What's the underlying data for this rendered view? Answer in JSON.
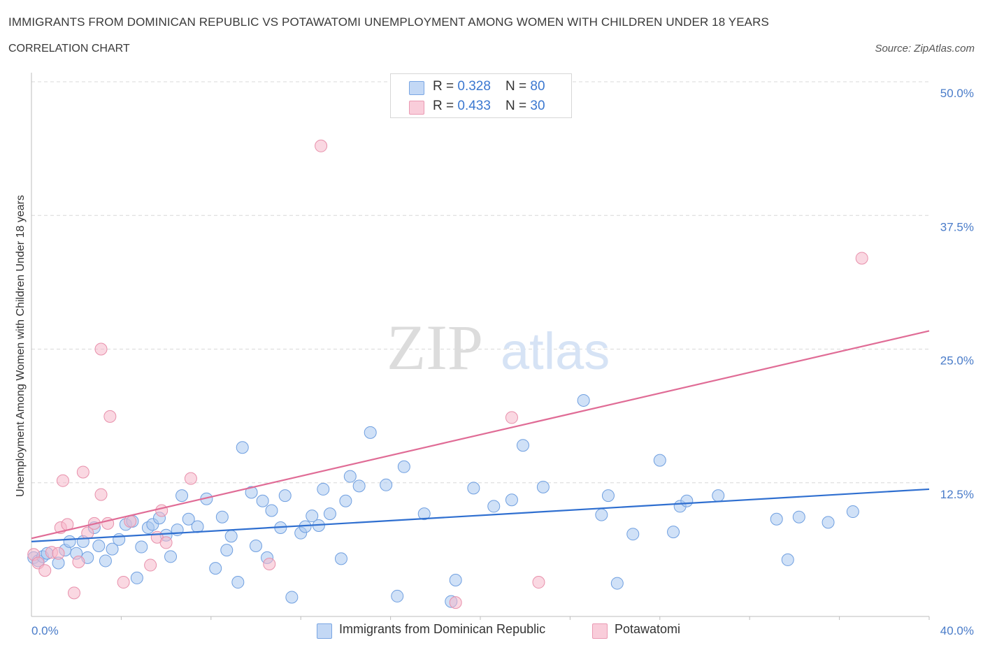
{
  "header": {
    "title": "IMMIGRANTS FROM DOMINICAN REPUBLIC VS POTAWATOMI UNEMPLOYMENT AMONG WOMEN WITH CHILDREN UNDER 18 YEARS",
    "subtitle": "CORRELATION CHART",
    "source": "Source: ZipAtlas.com"
  },
  "watermark": {
    "zip": "ZIP",
    "atlas": "atlas"
  },
  "legend": {
    "rows": [
      {
        "r_label": "R = ",
        "r_value": "0.328",
        "n_label": "N = ",
        "n_value": "80",
        "color": "#a9c8f0"
      },
      {
        "r_label": "R = ",
        "r_value": "0.433",
        "n_label": "N = ",
        "n_value": "30",
        "color": "#f5b8cb"
      }
    ]
  },
  "colors": {
    "blue_fill": "#a9c8f0",
    "blue_stroke": "#6f9fe0",
    "blue_line": "#2f6fd0",
    "pink_fill": "#f5b8cb",
    "pink_stroke": "#e890ab",
    "pink_line": "#e06c96",
    "grid": "#d8d8d8",
    "tick_text": "#4a7cc9"
  },
  "chart_data": {
    "type": "scatter",
    "title": "IMMIGRANTS FROM DOMINICAN REPUBLIC VS POTAWATOMI UNEMPLOYMENT AMONG WOMEN WITH CHILDREN UNDER 18 YEARS",
    "xlabel": "",
    "ylabel": "Unemployment Among Women with Children Under 18 years",
    "xlim": [
      0,
      40
    ],
    "ylim": [
      0,
      50
    ],
    "x_tick_labels": [
      "0.0%",
      "40.0%"
    ],
    "y_tick_labels": [
      "12.5%",
      "25.0%",
      "37.5%",
      "50.0%"
    ],
    "y_ticks": [
      12.5,
      25,
      37.5,
      50
    ],
    "grid": true,
    "legend_placement": "top-center",
    "series": [
      {
        "name": "Immigrants from Dominican Republic",
        "r": 0.328,
        "n": 80,
        "trend": [
          [
            0,
            7.0
          ],
          [
            40,
            11.9
          ]
        ],
        "points": [
          [
            0.1,
            5.5
          ],
          [
            0.3,
            5.2
          ],
          [
            0.5,
            5.6
          ],
          [
            0.7,
            5.9
          ],
          [
            1.2,
            5.0
          ],
          [
            1.5,
            6.2
          ],
          [
            1.7,
            7.0
          ],
          [
            2.0,
            5.9
          ],
          [
            2.3,
            7.0
          ],
          [
            2.5,
            5.5
          ],
          [
            2.8,
            8.3
          ],
          [
            3.0,
            6.6
          ],
          [
            3.3,
            5.2
          ],
          [
            3.6,
            6.3
          ],
          [
            3.9,
            7.2
          ],
          [
            4.2,
            8.6
          ],
          [
            4.5,
            8.9
          ],
          [
            4.7,
            3.6
          ],
          [
            4.9,
            6.5
          ],
          [
            5.2,
            8.3
          ],
          [
            5.4,
            8.6
          ],
          [
            5.7,
            9.2
          ],
          [
            6.0,
            7.6
          ],
          [
            6.2,
            5.6
          ],
          [
            6.5,
            8.1
          ],
          [
            6.7,
            11.3
          ],
          [
            7.0,
            9.1
          ],
          [
            7.4,
            8.4
          ],
          [
            7.8,
            11.0
          ],
          [
            8.2,
            4.5
          ],
          [
            8.5,
            9.3
          ],
          [
            8.7,
            6.2
          ],
          [
            8.9,
            7.5
          ],
          [
            9.2,
            3.2
          ],
          [
            9.4,
            15.8
          ],
          [
            9.8,
            11.6
          ],
          [
            10.0,
            6.6
          ],
          [
            10.3,
            10.8
          ],
          [
            10.5,
            5.5
          ],
          [
            10.7,
            9.9
          ],
          [
            11.1,
            8.3
          ],
          [
            11.3,
            11.3
          ],
          [
            11.6,
            1.8
          ],
          [
            12.0,
            7.8
          ],
          [
            12.2,
            8.4
          ],
          [
            12.5,
            9.4
          ],
          [
            12.8,
            8.5
          ],
          [
            13.0,
            11.9
          ],
          [
            13.3,
            9.6
          ],
          [
            13.8,
            5.4
          ],
          [
            14.0,
            10.8
          ],
          [
            14.2,
            13.1
          ],
          [
            14.6,
            12.2
          ],
          [
            15.1,
            17.2
          ],
          [
            15.8,
            12.3
          ],
          [
            16.3,
            1.9
          ],
          [
            16.6,
            14.0
          ],
          [
            17.5,
            9.6
          ],
          [
            18.7,
            1.4
          ],
          [
            18.9,
            3.4
          ],
          [
            19.7,
            12.0
          ],
          [
            20.6,
            10.3
          ],
          [
            21.4,
            10.9
          ],
          [
            21.9,
            16.0
          ],
          [
            22.8,
            12.1
          ],
          [
            24.6,
            20.2
          ],
          [
            25.4,
            9.5
          ],
          [
            25.7,
            11.3
          ],
          [
            26.1,
            3.1
          ],
          [
            26.8,
            7.7
          ],
          [
            28.0,
            14.6
          ],
          [
            28.6,
            7.9
          ],
          [
            28.9,
            10.3
          ],
          [
            29.2,
            10.8
          ],
          [
            30.6,
            11.3
          ],
          [
            33.2,
            9.1
          ],
          [
            33.7,
            5.3
          ],
          [
            34.2,
            9.3
          ],
          [
            35.5,
            8.8
          ],
          [
            36.6,
            9.8
          ]
        ]
      },
      {
        "name": "Potawatomi",
        "r": 0.433,
        "n": 30,
        "trend": [
          [
            0,
            7.3
          ],
          [
            40,
            26.7
          ]
        ],
        "points": [
          [
            0.1,
            5.8
          ],
          [
            0.3,
            5.0
          ],
          [
            0.6,
            4.3
          ],
          [
            0.9,
            6.0
          ],
          [
            1.2,
            5.9
          ],
          [
            1.3,
            8.3
          ],
          [
            1.4,
            12.7
          ],
          [
            1.6,
            8.6
          ],
          [
            1.9,
            2.2
          ],
          [
            2.1,
            5.1
          ],
          [
            2.3,
            13.5
          ],
          [
            2.5,
            7.8
          ],
          [
            2.8,
            8.7
          ],
          [
            3.1,
            25.0
          ],
          [
            3.1,
            11.4
          ],
          [
            3.4,
            8.7
          ],
          [
            3.5,
            18.7
          ],
          [
            4.1,
            3.2
          ],
          [
            4.4,
            8.9
          ],
          [
            5.3,
            4.8
          ],
          [
            5.6,
            7.4
          ],
          [
            5.8,
            9.9
          ],
          [
            6.0,
            6.9
          ],
          [
            7.1,
            12.9
          ],
          [
            10.6,
            4.9
          ],
          [
            12.9,
            44.0
          ],
          [
            18.9,
            1.3
          ],
          [
            21.4,
            18.6
          ],
          [
            22.6,
            3.2
          ],
          [
            37.0,
            33.5
          ]
        ]
      }
    ]
  },
  "bottom_legend": {
    "items": [
      {
        "label": "Immigrants from Dominican Republic",
        "color": "#a9c8f0"
      },
      {
        "label": "Potawatomi",
        "color": "#f5b8cb"
      }
    ]
  }
}
